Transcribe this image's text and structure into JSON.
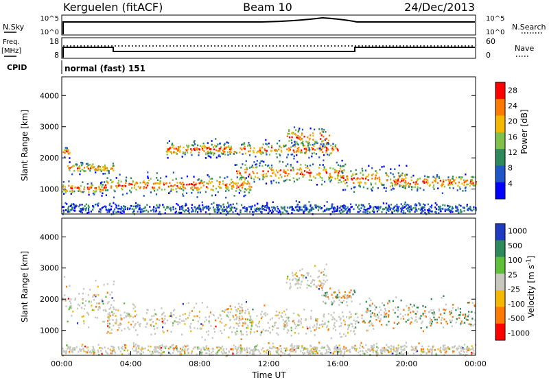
{
  "header": {
    "station": "Kerguelen (fitACF)",
    "beam": "Beam 10",
    "date": "24/Dec/2013"
  },
  "top_panel": {
    "nsky_label": "N.Sky",
    "nsky_ticks": [
      "10^5",
      "10^0"
    ],
    "nsearch_label": "N.Search",
    "nsearch_ticks": [
      "10^5",
      "10^0"
    ],
    "freq_label_line1": "Freq.",
    "freq_label_line2": "[MHz]",
    "freq_ticks": [
      "18",
      "8"
    ],
    "nave_label": "Nave",
    "nave_ticks": [
      "60",
      "0"
    ],
    "cpid_label": "CPID",
    "cpid_value": "normal (fast) 151"
  },
  "chart_data": [
    {
      "type": "heatmap",
      "panel": "power",
      "ylabel": "Slant Range [km]",
      "y_ticks": [
        "1000",
        "2000",
        "3000",
        "4000"
      ],
      "ylim": [
        200,
        4600
      ],
      "xlim": [
        0,
        24
      ],
      "colorbar": {
        "label": "Power [dB]",
        "ticks": [
          "4",
          "8",
          "12",
          "16",
          "20",
          "24",
          "28"
        ],
        "range": [
          0,
          30
        ],
        "colors": [
          "#0000ff",
          "#1f57c8",
          "#2e8a5a",
          "#7fc14a",
          "#f5b800",
          "#ff7a00",
          "#ff0000"
        ]
      },
      "bands": [
        {
          "start": 0.0,
          "end": 0.5,
          "center": 2200,
          "width": 300
        },
        {
          "start": 0.3,
          "end": 3.0,
          "center": 1700,
          "width": 250
        },
        {
          "start": 0.0,
          "end": 2.5,
          "center": 1050,
          "width": 300
        },
        {
          "start": 2.5,
          "end": 11.0,
          "center": 1150,
          "width": 450
        },
        {
          "start": 10.0,
          "end": 16.5,
          "center": 1550,
          "width": 500
        },
        {
          "start": 16.0,
          "end": 20.0,
          "center": 1350,
          "width": 500
        },
        {
          "start": 19.0,
          "end": 24.0,
          "center": 1250,
          "width": 400
        },
        {
          "start": 6.0,
          "end": 16.0,
          "center": 2300,
          "width": 350
        },
        {
          "start": 13.0,
          "end": 15.5,
          "center": 2700,
          "width": 500
        },
        {
          "start": 0.0,
          "end": 24.0,
          "center": 400,
          "width": 250
        }
      ]
    },
    {
      "type": "heatmap",
      "panel": "velocity",
      "ylabel": "Slant Range [km]",
      "y_ticks": [
        "1000",
        "2000",
        "3000",
        "4000"
      ],
      "ylim": [
        200,
        4600
      ],
      "xlim": [
        0,
        24
      ],
      "xlabel": "Time UT",
      "x_ticks": [
        "00:00",
        "04:00",
        "08:00",
        "12:00",
        "16:00",
        "20:00",
        "00:00"
      ],
      "colorbar": {
        "label": "Velocity [m s^-1]",
        "ticks": [
          "1000",
          "500",
          "100",
          "25",
          "-25",
          "-100",
          "-500",
          "-1000"
        ],
        "colors": [
          "#1f3bbf",
          "#2e8a5a",
          "#5fc03a",
          "#c8c8c0",
          "#f5b800",
          "#ff7a00",
          "#ff0000"
        ]
      },
      "bands": [
        {
          "start": 0.0,
          "end": 3.0,
          "center": 1900,
          "width": 900
        },
        {
          "start": 2.5,
          "end": 11.0,
          "center": 1350,
          "width": 700
        },
        {
          "start": 10.0,
          "end": 17.0,
          "center": 1300,
          "width": 700
        },
        {
          "start": 15.0,
          "end": 17.0,
          "center": 2100,
          "width": 400
        },
        {
          "start": 17.0,
          "end": 24.0,
          "center": 1550,
          "width": 700
        },
        {
          "start": 13.0,
          "end": 15.5,
          "center": 2700,
          "width": 500
        },
        {
          "start": 0.0,
          "end": 24.0,
          "center": 400,
          "width": 250
        }
      ]
    }
  ]
}
